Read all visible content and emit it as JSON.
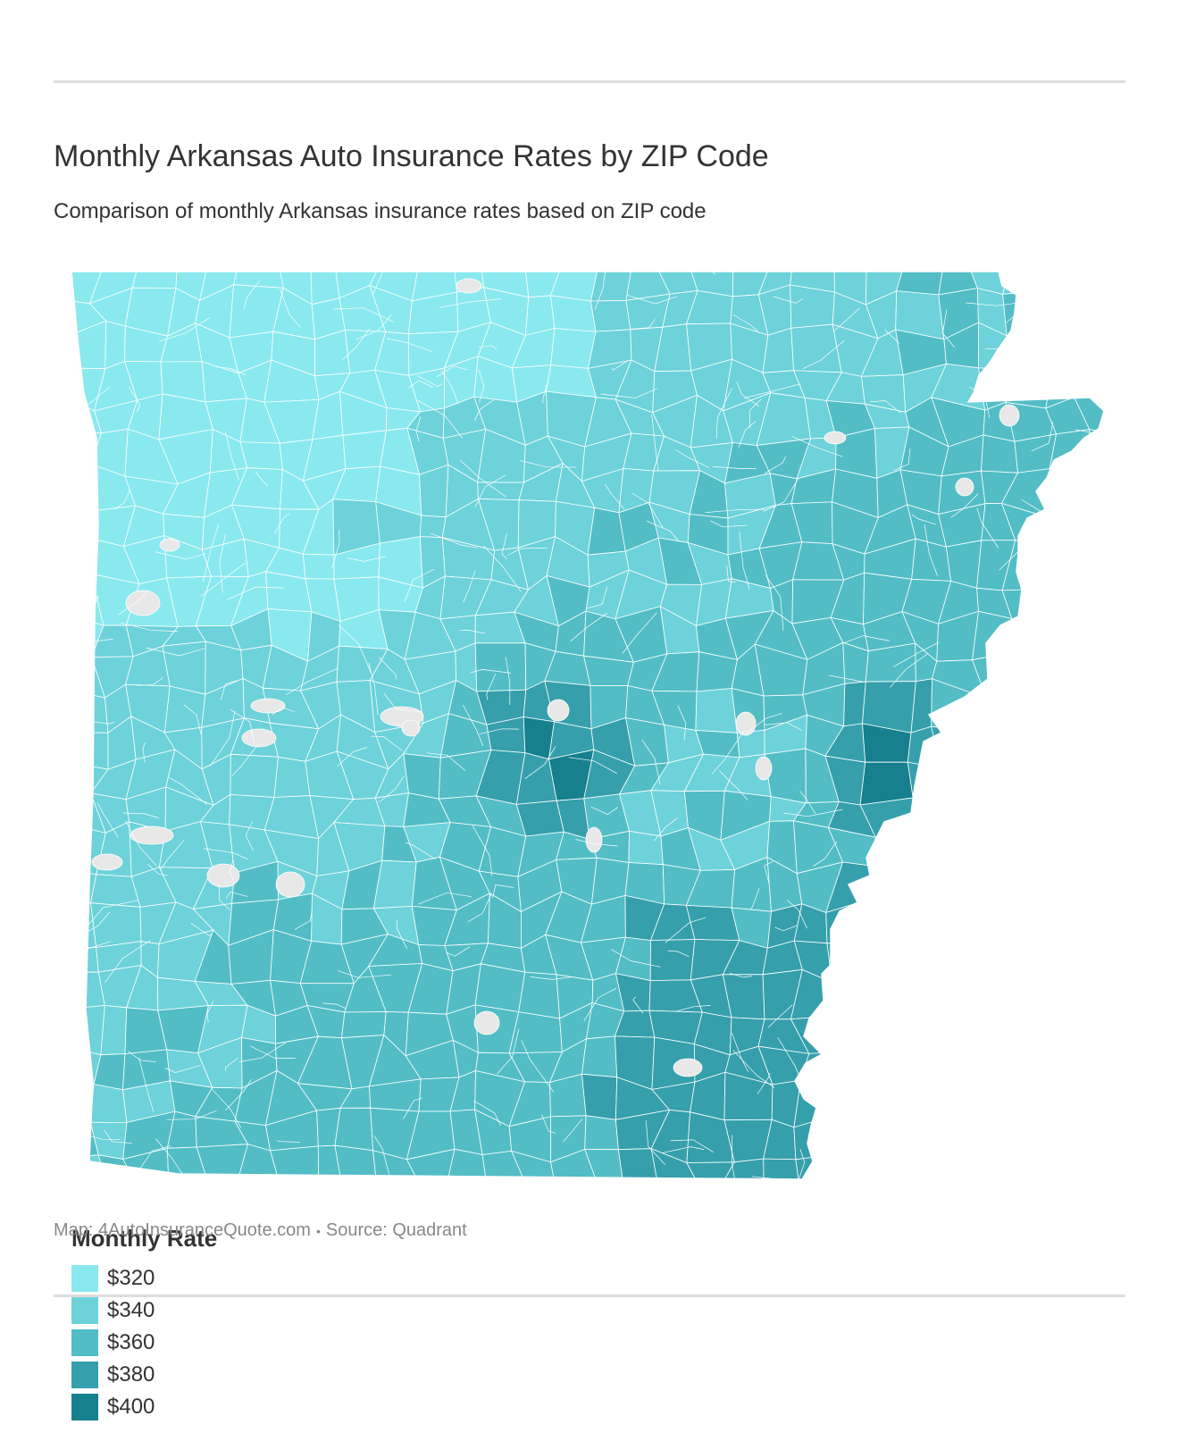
{
  "header": {
    "title": "Monthly Arkansas Auto Insurance Rates by ZIP Code",
    "subtitle": "Comparison of monthly Arkansas insurance rates based on ZIP code"
  },
  "legend": {
    "title": "Monthly Rate",
    "items": [
      {
        "label": "$320",
        "color": "#8ae9ee"
      },
      {
        "label": "$340",
        "color": "#6dd2d9"
      },
      {
        "label": "$360",
        "color": "#52bdc5"
      },
      {
        "label": "$380",
        "color": "#359fab"
      },
      {
        "label": "$400",
        "color": "#16808e"
      }
    ]
  },
  "map": {
    "region": "Arkansas",
    "no_data_color": "#e8e8e8",
    "border_color": "#ffffff"
  },
  "footer": {
    "map_credit": "Map: 4AutoInsuranceQuote.com",
    "separator": "•",
    "source": "Source: Quadrant"
  }
}
